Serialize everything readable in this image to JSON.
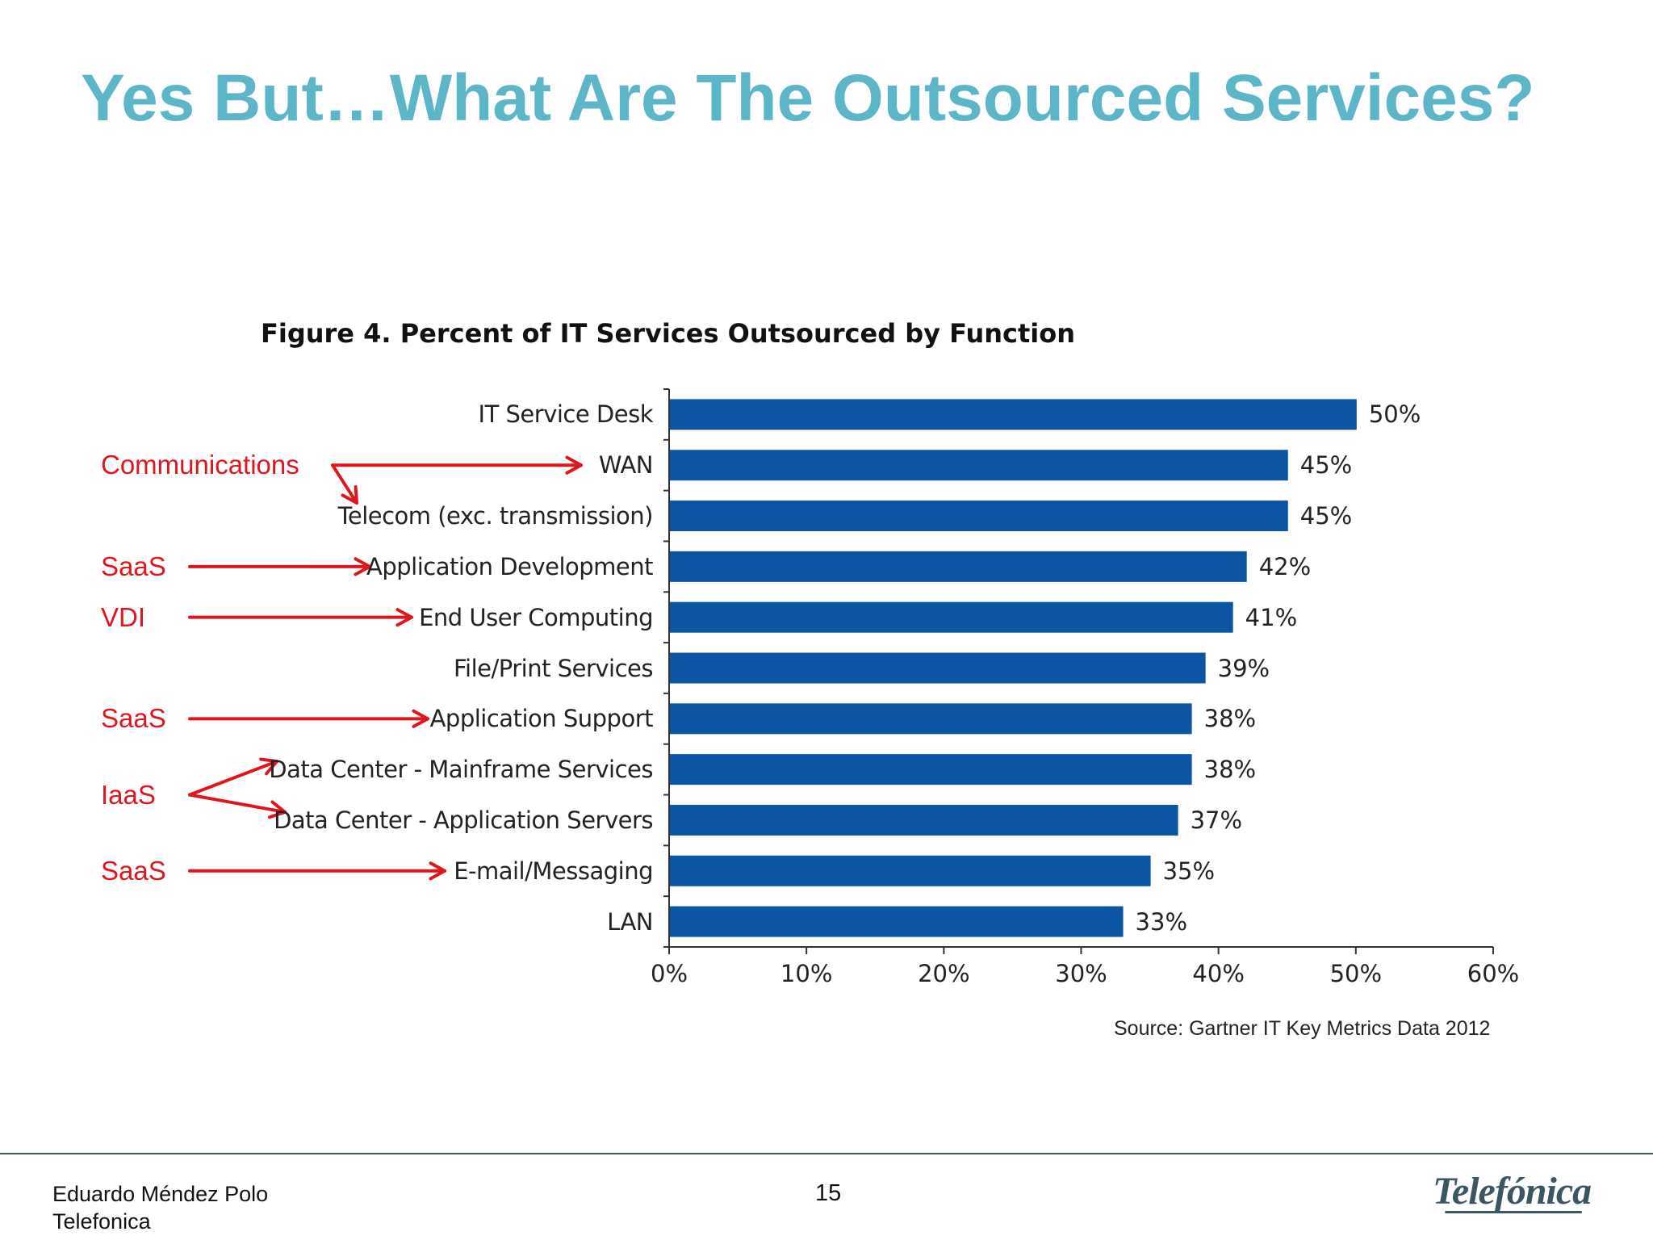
{
  "slide": {
    "title": "Yes But…What Are The Outsourced Services?",
    "source": "Source: Gartner IT Key Metrics Data 2012",
    "footer": {
      "author": "Eduardo Méndez Polo",
      "organization": "Telefonica",
      "page_number": "15",
      "logo_text": "Telefónica"
    }
  },
  "colors": {
    "title": "#5bb6c9",
    "bar": "#0b55a3",
    "annotation": "#e0161d"
  },
  "chart_data": {
    "type": "bar",
    "orientation": "horizontal",
    "title": "Figure 4. Percent of IT Services Outsourced by Function",
    "categories": [
      "IT Service Desk",
      "WAN",
      "Telecom (exc. transmission)",
      "Application Development",
      "End User Computing",
      "File/Print Services",
      "Application Support",
      "Data Center - Mainframe Services",
      "Data Center - Application Servers",
      "E-mail/Messaging",
      "LAN"
    ],
    "values": [
      50,
      45,
      45,
      42,
      41,
      39,
      38,
      38,
      37,
      35,
      33
    ],
    "value_labels": [
      "50%",
      "45%",
      "45%",
      "42%",
      "41%",
      "39%",
      "38%",
      "38%",
      "37%",
      "35%",
      "33%"
    ],
    "xlim": [
      0,
      60
    ],
    "xticks": [
      "0%",
      "10%",
      "20%",
      "30%",
      "40%",
      "50%",
      "60%"
    ],
    "xlabel": "",
    "ylabel": "",
    "grid": false
  },
  "annotations": [
    {
      "label": "Communications",
      "targets": [
        1,
        2
      ]
    },
    {
      "label": "SaaS",
      "targets": [
        3
      ]
    },
    {
      "label": "VDI",
      "targets": [
        4
      ]
    },
    {
      "label": "SaaS",
      "targets": [
        6
      ]
    },
    {
      "label": "IaaS",
      "targets": [
        7,
        8
      ]
    },
    {
      "label": "SaaS",
      "targets": [
        9
      ]
    }
  ]
}
